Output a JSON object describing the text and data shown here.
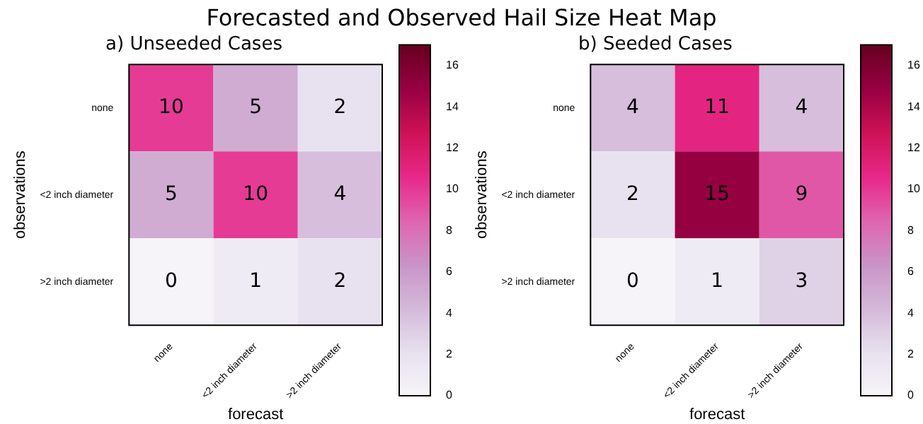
{
  "chart_data": [
    {
      "type": "heatmap",
      "title": "a) Unseeded Cases",
      "annotations": [
        "Forecasted and Observed Hail Size Heat Map"
      ],
      "xlabel": "forecast",
      "ylabel": "observations",
      "categories": [
        "none",
        "<2 inch diameter",
        ">2 inch diameter"
      ],
      "y_categories": [
        "none",
        "<2 inch diameter",
        ">2 inch diameter"
      ],
      "cells": [
        [
          10,
          5,
          2
        ],
        [
          5,
          10,
          4
        ],
        [
          0,
          1,
          2
        ]
      ],
      "data_labels": true,
      "clim": [
        0,
        17
      ],
      "cticks": [
        0,
        2,
        4,
        6,
        8,
        10,
        12,
        14,
        16
      ]
    },
    {
      "type": "heatmap",
      "title": "b) Seeded Cases",
      "xlabel": "forecast",
      "ylabel": "observations",
      "categories": [
        "none",
        "<2 inch diameter",
        ">2 inch diameter"
      ],
      "y_categories": [
        "none",
        "<2 inch diameter",
        ">2 inch diameter"
      ],
      "cells": [
        [
          4,
          11,
          4
        ],
        [
          2,
          15,
          9
        ],
        [
          0,
          1,
          3
        ]
      ],
      "data_labels": true,
      "clim": [
        0,
        17
      ],
      "cticks": [
        0,
        2,
        4,
        6,
        8,
        10,
        12,
        14,
        16
      ]
    }
  ]
}
